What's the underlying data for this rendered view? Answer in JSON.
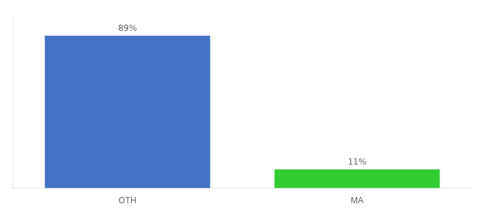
{
  "chart_data": {
    "type": "bar",
    "categories": [
      "OTH",
      "MA"
    ],
    "values": [
      89,
      11
    ],
    "value_labels": [
      "89%",
      "11%"
    ],
    "data_labels": true,
    "colors": [
      "#4472c4",
      "#33cc33"
    ],
    "ylim": [
      0,
      100
    ],
    "tick_labels": "x",
    "grid": false
  }
}
